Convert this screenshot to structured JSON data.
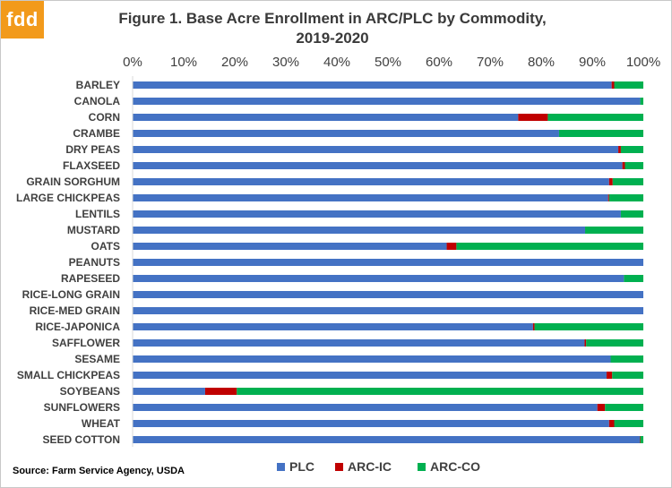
{
  "logo_text": "fdd",
  "title_line1": "Figure 1. Base Acre Enrollment in ARC/PLC by Commodity,",
  "title_line2": "2019-2020",
  "source": "Source: Farm Service Agency, USDA",
  "colors": {
    "PLC": "#4472c4",
    "ARC-IC": "#c00000",
    "ARC-CO": "#00b050"
  },
  "chart_data": {
    "type": "bar",
    "orientation": "horizontal",
    "stacked": true,
    "title": "Figure 1. Base Acre Enrollment in ARC/PLC by Commodity, 2019-2020",
    "xlim": [
      0,
      100
    ],
    "x_ticks": [
      "0%",
      "10%",
      "20%",
      "30%",
      "40%",
      "50%",
      "60%",
      "70%",
      "80%",
      "90%",
      "100%"
    ],
    "legend_position": "bottom",
    "gridlines": false,
    "categories": [
      "BARLEY",
      "CANOLA",
      "CORN",
      "CRAMBE",
      "DRY PEAS",
      "FLAXSEED",
      "GRAIN SORGHUM",
      "LARGE CHICKPEAS",
      "LENTILS",
      "MUSTARD",
      "OATS",
      "PEANUTS",
      "RAPESEED",
      "RICE-LONG GRAIN",
      "RICE-MED GRAIN",
      "RICE-JAPONICA",
      "SAFFLOWER",
      "SESAME",
      "SMALL CHICKPEAS",
      "SOYBEANS",
      "SUNFLOWERS",
      "WHEAT",
      "SEED COTTON"
    ],
    "series": [
      {
        "name": "PLC",
        "values": [
          93.8,
          99.4,
          75.5,
          83.5,
          95.1,
          95.9,
          93.3,
          93.1,
          95.6,
          88.6,
          61.5,
          100,
          96.2,
          100,
          100,
          78.4,
          88.5,
          93.6,
          92.8,
          14.2,
          91.0,
          93.3,
          99.3
        ]
      },
      {
        "name": "ARC-IC",
        "values": [
          0.5,
          0.0,
          5.8,
          0.0,
          0.5,
          0.5,
          0.7,
          0.2,
          0.0,
          0.0,
          1.9,
          0,
          0.0,
          0,
          0,
          0.3,
          0.3,
          0.0,
          1.1,
          6.2,
          1.5,
          1.0,
          0.1
        ]
      },
      {
        "name": "ARC-CO",
        "values": [
          5.7,
          0.6,
          18.7,
          16.5,
          4.4,
          3.6,
          6.0,
          6.7,
          4.4,
          11.4,
          36.6,
          0,
          3.8,
          0,
          0,
          21.3,
          11.2,
          6.4,
          6.1,
          79.6,
          7.5,
          5.7,
          0.6
        ]
      }
    ]
  }
}
